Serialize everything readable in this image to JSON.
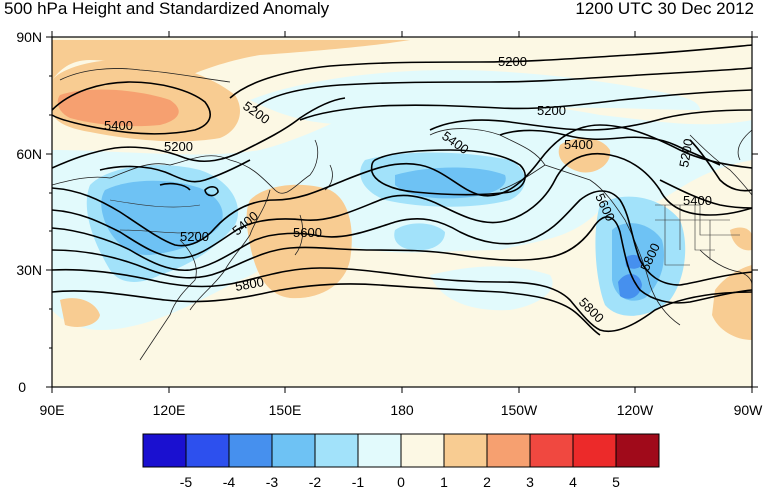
{
  "header": {
    "title": "500 hPa Height and Standardized Anomaly",
    "valid_time": "1200 UTC 30 Dec 2012"
  },
  "axes": {
    "lat_labels": [
      "90N",
      "60N",
      "30N",
      "0"
    ],
    "lat_values": [
      90,
      60,
      30,
      0
    ],
    "lon_labels": [
      "90E",
      "120E",
      "150E",
      "180",
      "150W",
      "120W",
      "90W"
    ],
    "lon_values": [
      90,
      120,
      150,
      180,
      210,
      240,
      270
    ]
  },
  "contour_labels": [
    "5200",
    "5400",
    "5200",
    "5200",
    "5400",
    "5200",
    "5600",
    "5800",
    "5200",
    "5400",
    "5400",
    "5600",
    "5800",
    "5800",
    "5200",
    "5400"
  ],
  "colorbar": {
    "labels": [
      "-5",
      "-4",
      "-3",
      "-2",
      "-1",
      "0",
      "1",
      "2",
      "3",
      "4",
      "5"
    ],
    "colors": [
      "#1a10d0",
      "#2d50ee",
      "#4690ee",
      "#6ec2f4",
      "#a2e2fa",
      "#e2fafc",
      "#fcf8e4",
      "#f8cc92",
      "#f6a070",
      "#f04840",
      "#ec2a2a",
      "#a00a1a"
    ]
  },
  "colors": {
    "negative_light": "#e2fafc",
    "negative_mid": "#a2e2fa",
    "negative_strong": "#6ec2f4",
    "negative_deep": "#4690ee",
    "neutral": "#fcf8e4",
    "positive_light": "#f8cc92",
    "positive_mid": "#f6a070"
  }
}
